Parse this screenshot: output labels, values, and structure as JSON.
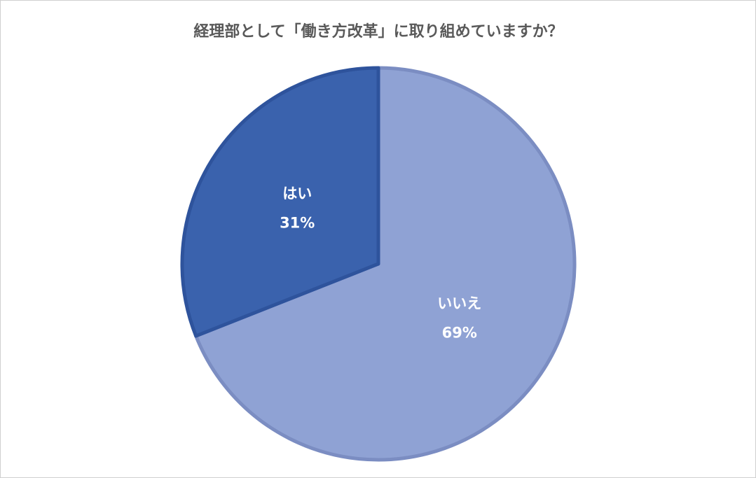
{
  "chart_data": {
    "type": "pie",
    "title": "経理部として「働き方改革」に取り組めていますか？",
    "categories": [
      "いいえ",
      "はい"
    ],
    "values": [
      69,
      31
    ],
    "value_labels": [
      "69%",
      "31%"
    ],
    "colors": [
      "#8fa2d4",
      "#3a62ad"
    ],
    "edge_colors": [
      "#7b8dc2",
      "#2e539c"
    ]
  }
}
